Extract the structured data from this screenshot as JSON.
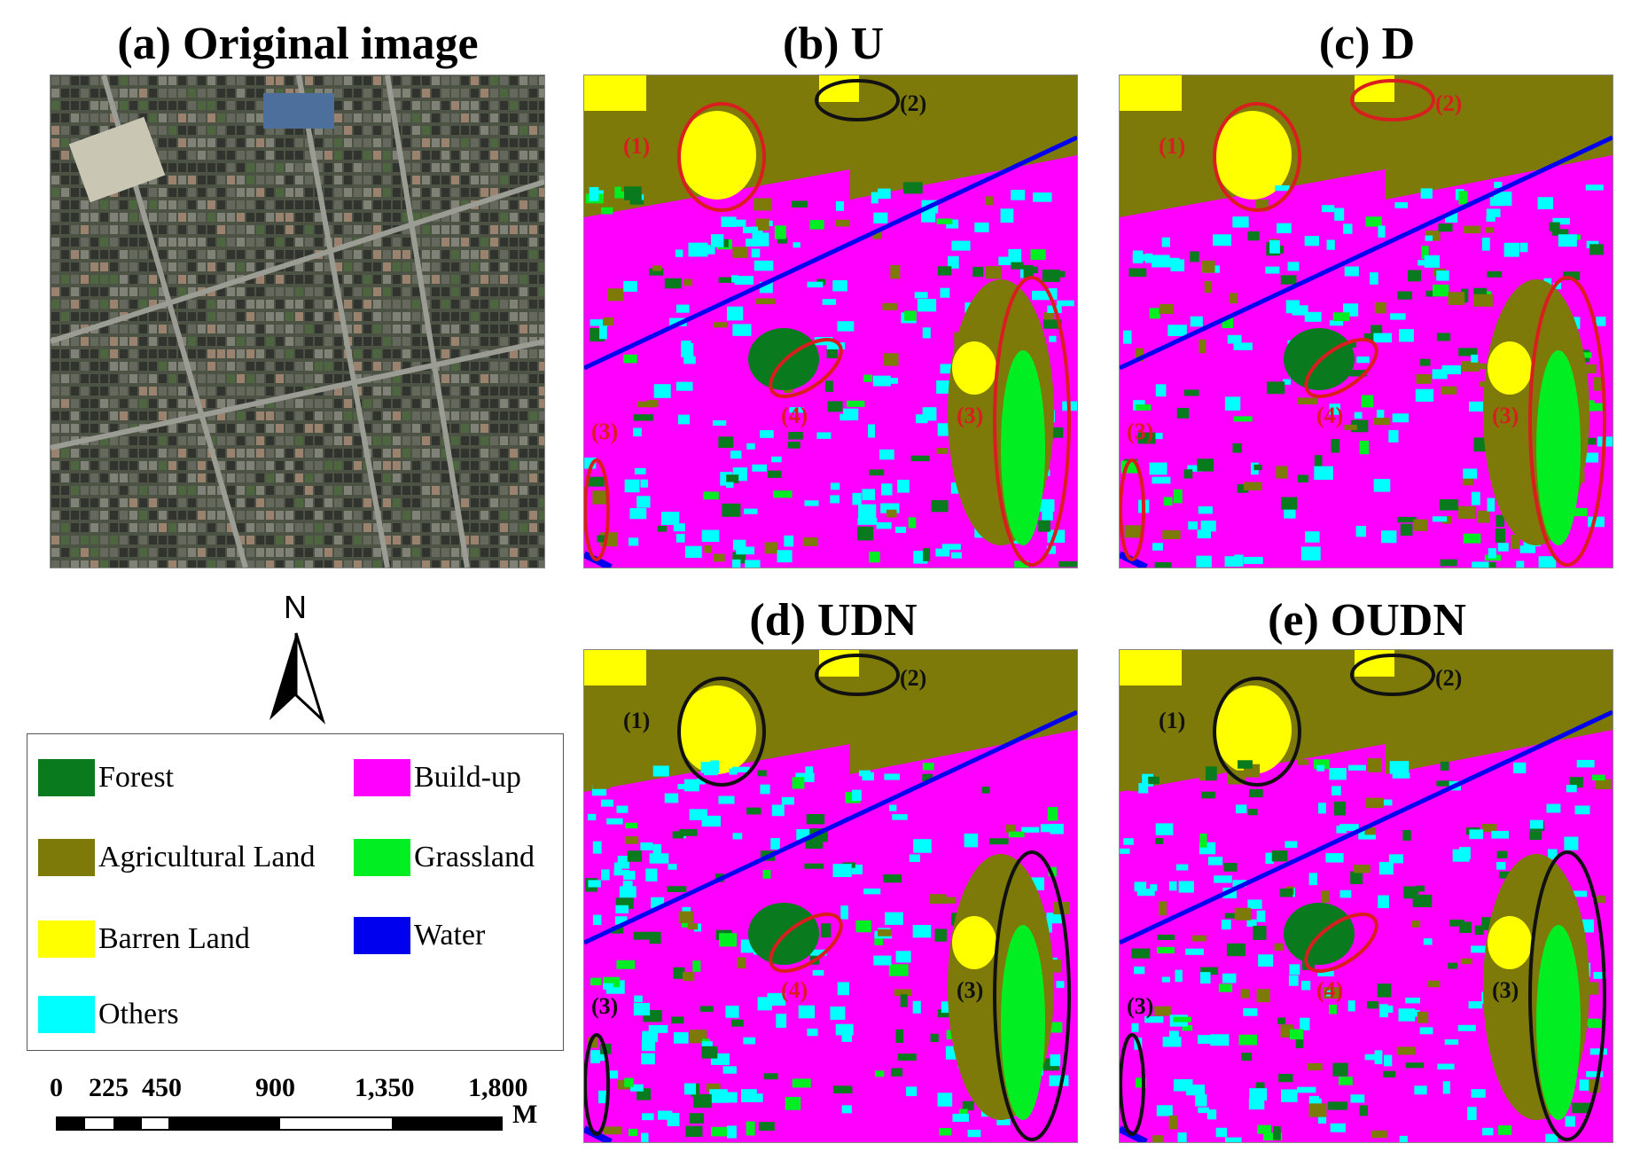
{
  "titles": {
    "a": "(a) Original  image",
    "b": "(b) U",
    "c": "(c) D",
    "d": "(d) UDN",
    "e": "(e) OUDN"
  },
  "north": "N",
  "legend": [
    {
      "label": "Forest",
      "color": "#0a7a1e"
    },
    {
      "label": "Build-up",
      "color": "#ff00ff"
    },
    {
      "label": "Agricultural Land",
      "color": "#7d7a0a"
    },
    {
      "label": "Grassland",
      "color": "#00ee22"
    },
    {
      "label": "Barren Land",
      "color": "#ffff00"
    },
    {
      "label": "Water",
      "color": "#0000ee"
    },
    {
      "label": "Others",
      "color": "#00ffff"
    }
  ],
  "scale": {
    "ticks": [
      "0",
      "225",
      "450",
      "900",
      "1,350",
      "1,800"
    ],
    "unit": "M"
  },
  "annotations": {
    "n1": "(1)",
    "n2": "(2)",
    "n3": "(3)",
    "n4": "(4)"
  },
  "colors": {
    "red_circle": "#d81e1e",
    "black_circle": "#111111"
  }
}
